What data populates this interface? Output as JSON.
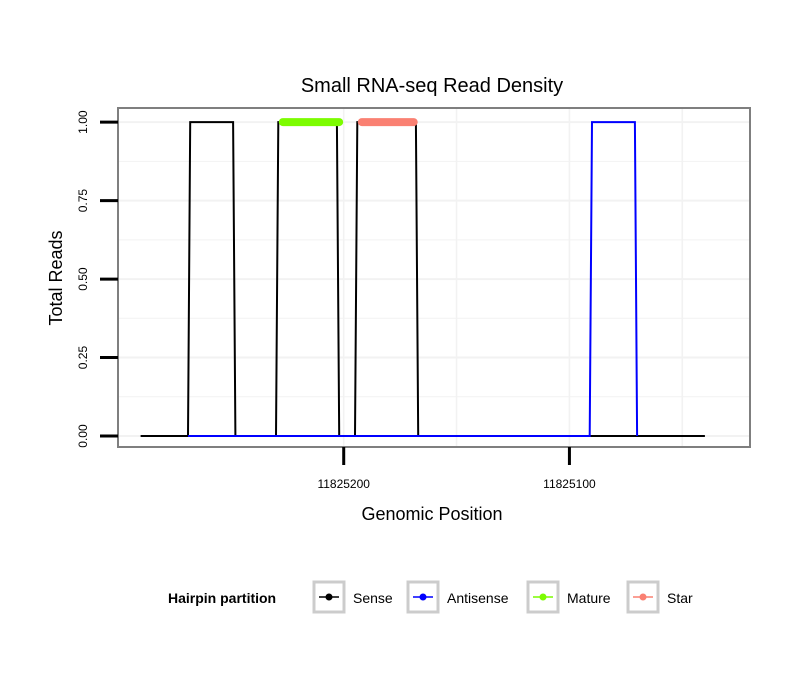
{
  "chart_data": {
    "type": "line",
    "title": "Small RNA-seq Read Density",
    "xlabel": "Genomic Position",
    "ylabel": "Total Reads",
    "x_reversed": true,
    "xlim": [
      11825300,
      11825020
    ],
    "ylim": [
      -0.035,
      1.045
    ],
    "xticks": [
      11825200,
      11825100
    ],
    "xtick_labels": [
      "11825200",
      "11825100"
    ],
    "yticks": [
      0,
      0.25,
      0.5,
      0.75,
      1.0
    ],
    "ytick_labels": [
      "0.00",
      "0.25",
      "0.50",
      "0.75",
      "1.00"
    ],
    "legend": {
      "position": "bottom",
      "title": "Hairpin partition",
      "entries": [
        {
          "name": "Sense",
          "color": "#000000"
        },
        {
          "name": "Antisense",
          "color": "#0000ff"
        },
        {
          "name": "Mature",
          "color": "#7cfc00"
        },
        {
          "name": "Star",
          "color": "#fa8072"
        }
      ]
    },
    "series": [
      {
        "name": "Sense",
        "color": "#000000",
        "x": [
          11825290,
          11825269,
          11825268,
          11825249,
          11825248,
          11825230,
          11825229,
          11825203,
          11825202,
          11825195,
          11825194,
          11825168,
          11825167,
          11825040
        ],
        "y": [
          0,
          0,
          1,
          1,
          0,
          0,
          1,
          1,
          0,
          0,
          1,
          1,
          0,
          0
        ]
      },
      {
        "name": "Antisense",
        "color": "#0000ff",
        "x": [
          11825269,
          11825168,
          11825167,
          11825091,
          11825090,
          11825071,
          11825070
        ],
        "y": [
          0,
          0,
          0,
          0,
          1,
          1,
          0
        ]
      },
      {
        "name": "Mature",
        "color": "#7cfc00",
        "x": [
          11825227,
          11825202
        ],
        "y": [
          1,
          1
        ]
      },
      {
        "name": "Star",
        "color": "#fa8072",
        "x": [
          11825192,
          11825169
        ],
        "y": [
          1,
          1
        ]
      }
    ]
  }
}
